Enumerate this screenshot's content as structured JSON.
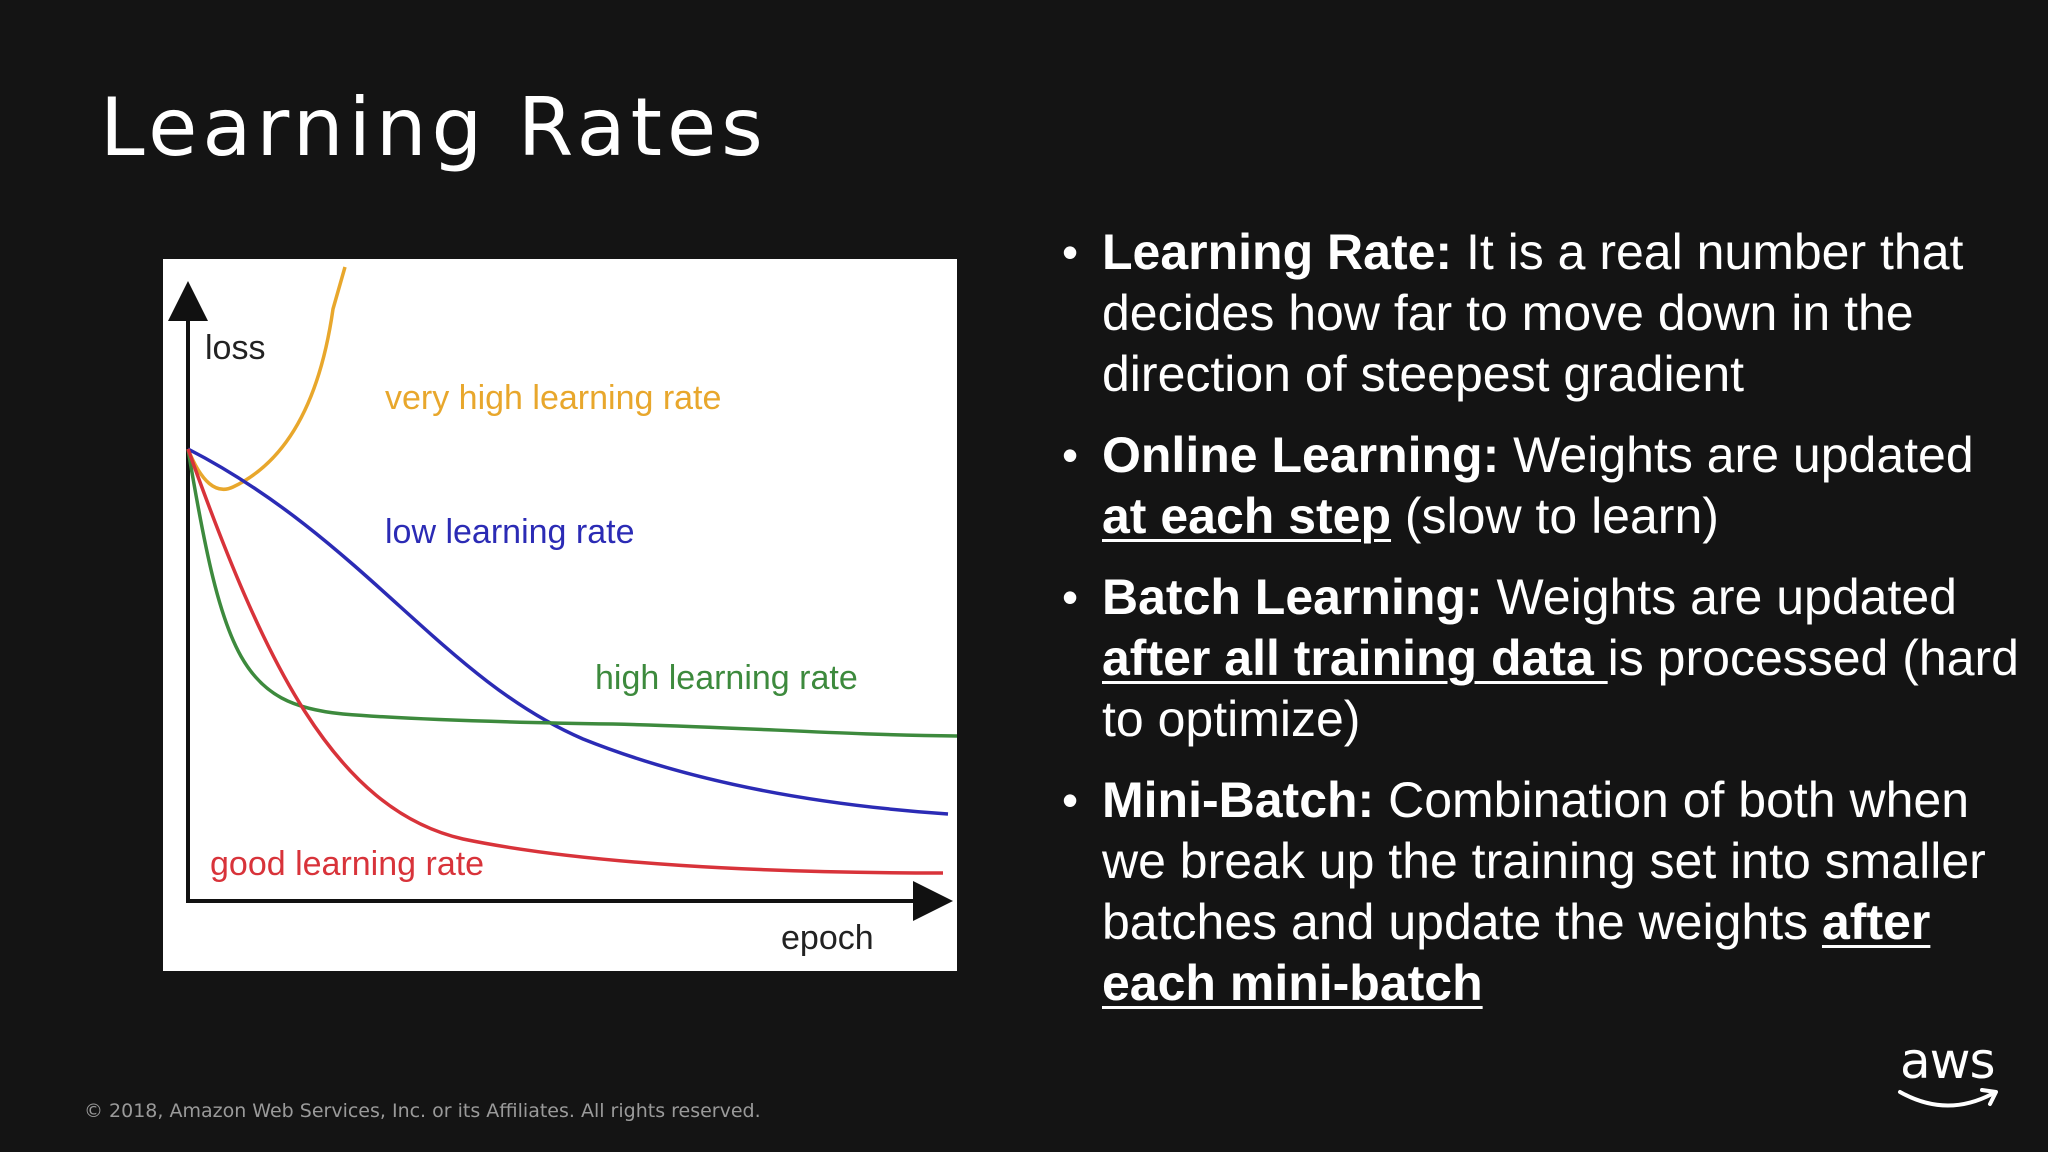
{
  "slide": {
    "title": "Learning Rates",
    "footer": "© 2018, Amazon Web Services, Inc. or its Affiliates. All rights reserved.",
    "logo_text": "aws"
  },
  "figure": {
    "y_label": "loss",
    "x_label": "epoch",
    "curves": [
      {
        "label": "very high learning rate",
        "color": "#e8a72c"
      },
      {
        "label": "low learning rate",
        "color": "#2b2bb5"
      },
      {
        "label": "high learning rate",
        "color": "#3d8a3d"
      },
      {
        "label": "good learning rate",
        "color": "#d8333a"
      }
    ]
  },
  "bullets": [
    {
      "term": "Learning Rate:",
      "text_before": " It is a real number that decides how far to move down in the direction of steepest gradient",
      "emphasis": "",
      "text_after": ""
    },
    {
      "term": "Online Learning:",
      "text_before": " Weights are updated ",
      "emphasis": "at each step",
      "text_after": " (slow to learn)"
    },
    {
      "term": "Batch Learning:",
      "text_before": " Weights are updated ",
      "emphasis": "after all training data ",
      "text_after": "is processed (hard to optimize)"
    },
    {
      "term": "Mini-Batch:",
      "text_before": " Combination of both when we break up the training set into smaller batches and update the weights ",
      "emphasis": "after each mini-batch",
      "text_after": ""
    }
  ]
}
